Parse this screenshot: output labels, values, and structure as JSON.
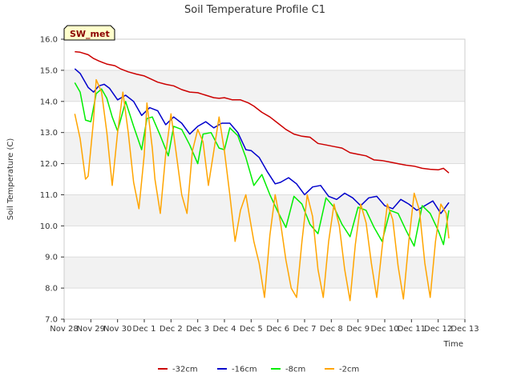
{
  "chart_data": {
    "type": "line",
    "title": "Soil Temperature Profile C1",
    "xlabel": "Time",
    "ylabel": "Soil Temperature (C)",
    "badge": "SW_met",
    "xlim": [
      0,
      15
    ],
    "ylim": [
      7.0,
      16.0
    ],
    "grid": "horizontal-bands",
    "legend_position": "bottom",
    "x_tick_labels": [
      "Nov 28",
      "Nov 29",
      "Nov 30",
      "Dec 1",
      "Dec 2",
      "Dec 3",
      "Dec 4",
      "Dec 5",
      "Dec 6",
      "Dec 7",
      "Dec 8",
      "Dec 9",
      "Dec 10",
      "Dec 11",
      "Dec 12",
      "Dec 13"
    ],
    "y_ticks": [
      7.0,
      8.0,
      9.0,
      10.0,
      11.0,
      12.0,
      13.0,
      14.0,
      15.0,
      16.0
    ],
    "y_tick_labels": [
      "7.0",
      "8.0",
      "9.0",
      "10.0",
      "11.0",
      "12.0",
      "13.0",
      "14.0",
      "15.0",
      "16.0"
    ],
    "series": [
      {
        "name": "-32cm",
        "color": "#cc0000",
        "x": [
          0.4,
          0.6,
          0.9,
          1.1,
          1.3,
          1.6,
          1.9,
          2.1,
          2.4,
          2.7,
          3.0,
          3.3,
          3.5,
          3.8,
          4.1,
          4.4,
          4.7,
          5.0,
          5.3,
          5.6,
          5.8,
          6.0,
          6.3,
          6.6,
          6.9,
          7.1,
          7.4,
          7.7,
          8.0,
          8.3,
          8.6,
          8.9,
          9.2,
          9.5,
          9.8,
          10.1,
          10.4,
          10.7,
          11.0,
          11.3,
          11.6,
          11.9,
          12.2,
          12.5,
          12.8,
          13.1,
          13.4,
          13.7,
          14.0,
          14.2,
          14.4
        ],
        "y": [
          15.6,
          15.58,
          15.5,
          15.38,
          15.3,
          15.2,
          15.15,
          15.05,
          14.95,
          14.88,
          14.82,
          14.7,
          14.62,
          14.55,
          14.5,
          14.38,
          14.3,
          14.28,
          14.2,
          14.12,
          14.1,
          14.12,
          14.05,
          14.05,
          13.95,
          13.85,
          13.65,
          13.5,
          13.3,
          13.1,
          12.95,
          12.88,
          12.85,
          12.65,
          12.6,
          12.55,
          12.5,
          12.35,
          12.3,
          12.25,
          12.12,
          12.1,
          12.05,
          12.0,
          11.95,
          11.92,
          11.85,
          11.82,
          11.8,
          11.85,
          11.7
        ]
      },
      {
        "name": "-16cm",
        "color": "#0000cc",
        "x": [
          0.4,
          0.6,
          0.9,
          1.1,
          1.3,
          1.5,
          1.7,
          2.0,
          2.3,
          2.6,
          2.9,
          3.2,
          3.5,
          3.8,
          4.1,
          4.4,
          4.7,
          5.0,
          5.3,
          5.6,
          5.9,
          6.2,
          6.5,
          6.8,
          7.0,
          7.3,
          7.6,
          7.9,
          8.1,
          8.4,
          8.7,
          9.0,
          9.3,
          9.6,
          9.9,
          10.2,
          10.5,
          10.8,
          11.1,
          11.4,
          11.7,
          12.0,
          12.3,
          12.6,
          12.9,
          13.2,
          13.5,
          13.8,
          14.1,
          14.4
        ],
        "y": [
          15.05,
          14.9,
          14.45,
          14.3,
          14.5,
          14.55,
          14.42,
          14.05,
          14.2,
          14.0,
          13.55,
          13.8,
          13.7,
          13.25,
          13.5,
          13.3,
          12.95,
          13.2,
          13.35,
          13.15,
          13.3,
          13.3,
          13.0,
          12.45,
          12.42,
          12.2,
          11.75,
          11.35,
          11.4,
          11.55,
          11.35,
          11.0,
          11.25,
          11.3,
          10.95,
          10.85,
          11.05,
          10.9,
          10.65,
          10.9,
          10.95,
          10.65,
          10.55,
          10.85,
          10.7,
          10.5,
          10.65,
          10.8,
          10.4,
          10.75
        ]
      },
      {
        "name": "-8cm",
        "color": "#00ee00",
        "x": [
          0.4,
          0.6,
          0.8,
          1.0,
          1.2,
          1.4,
          1.6,
          1.8,
          2.0,
          2.3,
          2.6,
          2.9,
          3.1,
          3.3,
          3.6,
          3.9,
          4.1,
          4.4,
          4.7,
          5.0,
          5.2,
          5.5,
          5.8,
          6.0,
          6.2,
          6.5,
          6.8,
          7.1,
          7.4,
          7.7,
          8.0,
          8.3,
          8.6,
          8.9,
          9.2,
          9.5,
          9.8,
          10.1,
          10.4,
          10.7,
          11.0,
          11.3,
          11.6,
          11.9,
          12.2,
          12.5,
          12.8,
          13.1,
          13.4,
          13.7,
          14.0,
          14.2,
          14.4
        ],
        "y": [
          14.6,
          14.3,
          13.4,
          13.35,
          14.25,
          14.4,
          14.1,
          13.5,
          13.05,
          14.0,
          13.2,
          12.45,
          13.45,
          13.5,
          12.9,
          12.25,
          13.2,
          13.1,
          12.6,
          12.0,
          12.95,
          13.0,
          12.5,
          12.45,
          13.15,
          12.9,
          12.2,
          11.3,
          11.65,
          11.0,
          10.45,
          9.95,
          10.95,
          10.7,
          10.05,
          9.75,
          10.9,
          10.6,
          10.05,
          9.65,
          10.6,
          10.5,
          9.95,
          9.5,
          10.5,
          10.4,
          9.85,
          9.35,
          10.65,
          10.4,
          9.85,
          9.4,
          10.5
        ]
      },
      {
        "name": "-2cm",
        "color": "#ffa500",
        "x": [
          0.4,
          0.6,
          0.8,
          0.9,
          1.1,
          1.2,
          1.4,
          1.6,
          1.8,
          2.0,
          2.2,
          2.4,
          2.6,
          2.8,
          3.0,
          3.1,
          3.3,
          3.4,
          3.6,
          3.8,
          4.0,
          4.2,
          4.4,
          4.6,
          4.8,
          5.0,
          5.2,
          5.4,
          5.6,
          5.8,
          6.0,
          6.2,
          6.4,
          6.6,
          6.8,
          7.0,
          7.1,
          7.3,
          7.5,
          7.7,
          7.9,
          8.1,
          8.3,
          8.5,
          8.7,
          8.9,
          9.1,
          9.3,
          9.5,
          9.7,
          9.9,
          10.1,
          10.3,
          10.5,
          10.7,
          10.9,
          11.1,
          11.3,
          11.5,
          11.7,
          11.9,
          12.1,
          12.3,
          12.5,
          12.7,
          12.9,
          13.1,
          13.3,
          13.5,
          13.7,
          13.9,
          14.1,
          14.3,
          14.4
        ],
        "y": [
          13.6,
          12.8,
          11.5,
          11.6,
          13.4,
          14.7,
          14.3,
          13.0,
          11.3,
          13.0,
          14.3,
          13.0,
          11.4,
          10.55,
          12.3,
          13.95,
          12.5,
          11.5,
          10.4,
          12.3,
          13.6,
          12.3,
          11.0,
          10.4,
          12.4,
          13.1,
          12.7,
          11.3,
          12.4,
          13.5,
          12.4,
          11.0,
          9.5,
          10.5,
          11.0,
          10.0,
          9.5,
          8.8,
          7.7,
          9.7,
          11.0,
          10.1,
          8.9,
          8.0,
          7.7,
          9.5,
          11.0,
          10.3,
          8.6,
          7.7,
          9.5,
          10.7,
          10.0,
          8.6,
          7.6,
          9.4,
          10.7,
          10.1,
          8.8,
          7.7,
          9.3,
          10.7,
          10.2,
          8.7,
          7.65,
          9.5,
          11.05,
          10.5,
          8.8,
          7.7,
          9.5,
          10.7,
          10.4,
          9.6
        ]
      }
    ]
  }
}
